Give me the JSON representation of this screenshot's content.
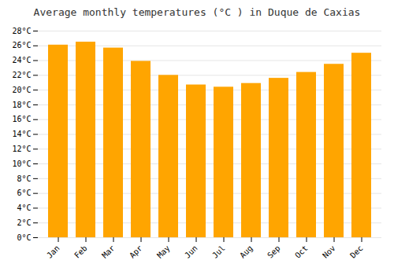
{
  "chart_data": {
    "type": "bar",
    "title": "Average monthly temperatures (°C ) in Duque de Caxias",
    "categories": [
      "Jan",
      "Feb",
      "Mar",
      "Apr",
      "May",
      "Jun",
      "Jul",
      "Aug",
      "Sep",
      "Oct",
      "Nov",
      "Dec"
    ],
    "values": [
      26.1,
      26.5,
      25.7,
      23.9,
      22.0,
      20.7,
      20.4,
      20.9,
      21.6,
      22.4,
      23.5,
      25.0
    ],
    "color": "#FFA500",
    "ylim": [
      0,
      28
    ],
    "yticks": [
      {
        "value": 0,
        "label": "0°C"
      },
      {
        "value": 2,
        "label": "2°C"
      },
      {
        "value": 4,
        "label": "4°C"
      },
      {
        "value": 6,
        "label": "6°C"
      },
      {
        "value": 8,
        "label": "8°C"
      },
      {
        "value": 10,
        "label": "10°C"
      },
      {
        "value": 12,
        "label": "12°C"
      },
      {
        "value": 14,
        "label": "14°C"
      },
      {
        "value": 16,
        "label": "16°C"
      },
      {
        "value": 18,
        "label": "18°C"
      },
      {
        "value": 20,
        "label": "20°C"
      },
      {
        "value": 22,
        "label": "22°C"
      },
      {
        "value": 24,
        "label": "24°C"
      },
      {
        "value": 26,
        "label": "26°C"
      },
      {
        "value": 28,
        "label": "28°C"
      }
    ],
    "grid": true
  }
}
